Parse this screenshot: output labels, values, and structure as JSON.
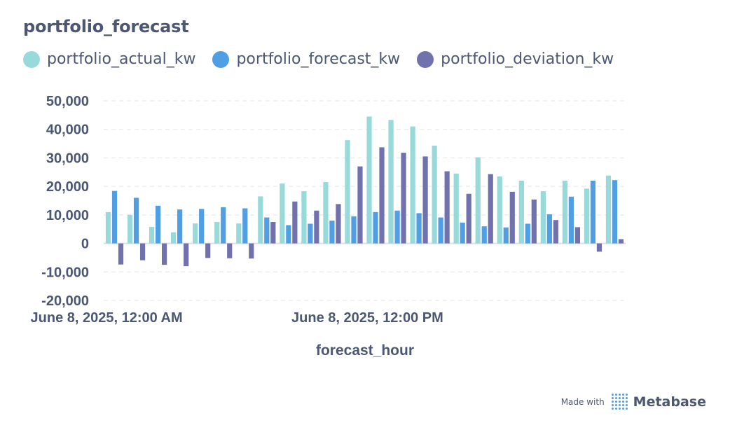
{
  "title": "portfolio_forecast",
  "colors": {
    "actual": "#98d9d9",
    "forecast": "#509ee3",
    "deviation": "#7172ad",
    "grid": "#ebedf0",
    "axis_text": "#4c5773"
  },
  "footer": {
    "made_with": "Made with",
    "brand": "Metabase",
    "logo": "metabase-logo-icon"
  },
  "chart_data": {
    "type": "bar",
    "title": "portfolio_forecast",
    "xlabel": "forecast_hour",
    "ylabel": "",
    "ylim": [
      -20000,
      50000
    ],
    "yticks": [
      50000,
      40000,
      30000,
      20000,
      10000,
      0,
      -10000,
      -20000
    ],
    "ytick_labels": [
      "50,000",
      "40,000",
      "30,000",
      "20,000",
      "10,000",
      "0",
      "-10,000",
      "-20,000"
    ],
    "xtick_labels": [
      {
        "index": 0,
        "label": "June 8, 2025, 12:00 AM"
      },
      {
        "index": 12,
        "label": "June 8, 2025, 12:00 PM"
      }
    ],
    "grid": true,
    "legend_position": "top-left",
    "categories": [
      "0",
      "1",
      "2",
      "3",
      "4",
      "5",
      "6",
      "7",
      "8",
      "9",
      "10",
      "11",
      "12",
      "13",
      "14",
      "15",
      "16",
      "17",
      "18",
      "19",
      "20",
      "21",
      "22",
      "23"
    ],
    "series": [
      {
        "name": "portfolio_actual_kw",
        "color": "#98d9d9",
        "values": [
          11000,
          10000,
          5800,
          3900,
          7000,
          7500,
          7000,
          16500,
          21000,
          18300,
          21500,
          36200,
          44500,
          43300,
          41000,
          34300,
          24500,
          30200,
          23500,
          22000,
          18300,
          22000,
          19200,
          23800
        ]
      },
      {
        "name": "portfolio_forecast_kw",
        "color": "#509ee3",
        "values": [
          18400,
          16000,
          13200,
          11900,
          12100,
          12700,
          12300,
          9100,
          6400,
          6900,
          8000,
          9500,
          11000,
          11500,
          10600,
          9100,
          7300,
          6000,
          5600,
          6900,
          10200,
          16400,
          22000,
          22200
        ]
      },
      {
        "name": "portfolio_deviation_kw",
        "color": "#7172ad",
        "values": [
          -7400,
          -5900,
          -7500,
          -8000,
          -5100,
          -5200,
          -5300,
          7500,
          14700,
          11500,
          13800,
          27000,
          33700,
          31800,
          30500,
          25300,
          17400,
          24300,
          18100,
          15400,
          8200,
          5700,
          -2900,
          1500
        ]
      }
    ]
  }
}
